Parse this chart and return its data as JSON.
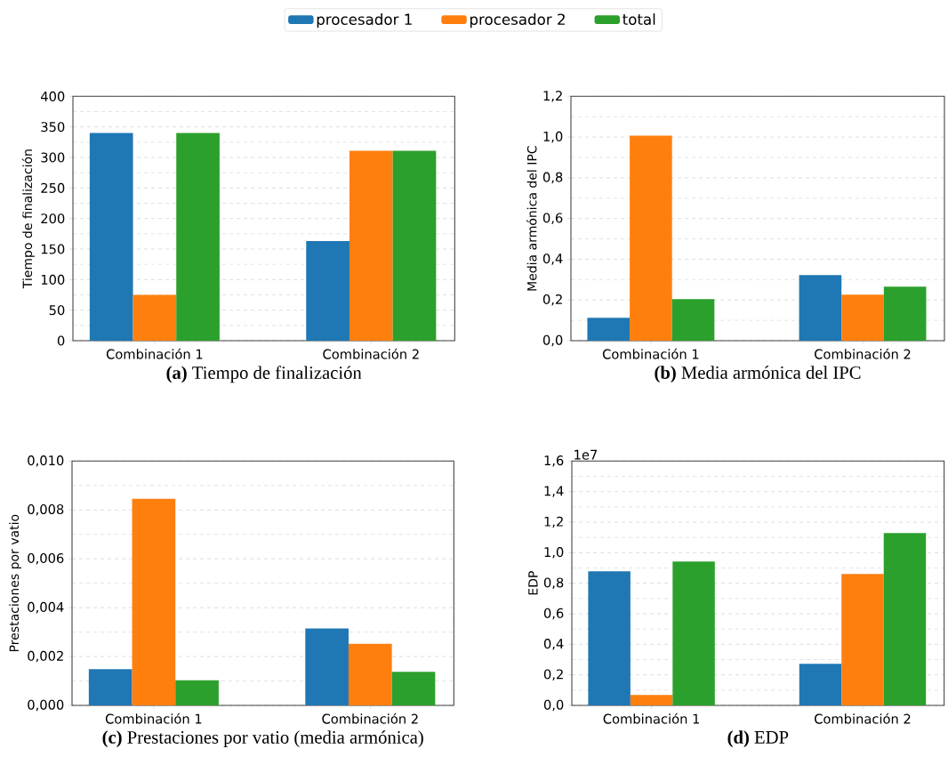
{
  "chart_data": [
    {
      "type": "bar",
      "title": "**(a)** Tiempo de finalización",
      "ylabel": "Tiempo de finalización",
      "categories": [
        "Combinación 1",
        "Combinación 2"
      ],
      "series": [
        {
          "name": "procesador 1",
          "color": "#1f77b4",
          "values": [
            340,
            163
          ]
        },
        {
          "name": "procesador 2",
          "color": "#ff7f0e",
          "values": [
            75,
            311
          ]
        },
        {
          "name": "total",
          "color": "#2ca02c",
          "values": [
            340,
            311
          ]
        }
      ],
      "ylim": [
        0,
        400
      ],
      "yticks": [
        0,
        50,
        100,
        150,
        200,
        250,
        300,
        350,
        400
      ],
      "grid": "y",
      "legend": "top"
    },
    {
      "type": "bar",
      "title": "**(b)** Media armónica del IPC",
      "ylabel": "Media armónica del IPC",
      "categories": [
        "Combinación 1",
        "Combinación 2"
      ],
      "series": [
        {
          "color": "#1f77b4",
          "values": [
            0.112,
            0.322
          ]
        },
        {
          "color": "#ff7f0e",
          "values": [
            1.007,
            0.226
          ]
        },
        {
          "color": "#2ca02c",
          "values": [
            0.204,
            0.265
          ]
        }
      ],
      "ylim": [
        0,
        1.2
      ],
      "yticks": [
        {
          "value": 0,
          "label": "0,0"
        },
        {
          "value": 0.2,
          "label": "0,2"
        },
        {
          "value": 0.4,
          "label": "0,4"
        },
        {
          "value": 0.6,
          "label": "0,6"
        },
        {
          "value": 0.8,
          "label": "0,8"
        },
        {
          "value": 1.0,
          "label": "1,0"
        },
        {
          "value": 1.2,
          "label": "1,2"
        }
      ],
      "grid": "y"
    },
    {
      "type": "bar",
      "title": "**(c)** Prestaciones por vatio (media armónica)",
      "ylabel": "Prestaciones por vatio",
      "categories": [
        "Combinación 1",
        "Combinación 2"
      ],
      "series": [
        {
          "color": "#1f77b4",
          "values": [
            0.00148,
            0.00315
          ]
        },
        {
          "color": "#ff7f0e",
          "values": [
            0.00846,
            0.00252
          ]
        },
        {
          "color": "#2ca02c",
          "values": [
            0.00103,
            0.00137
          ]
        }
      ],
      "ylim": [
        0,
        0.01
      ],
      "yticks": [
        {
          "value": 0,
          "label": "0,000"
        },
        {
          "value": 0.002,
          "label": "0,002"
        },
        {
          "value": 0.004,
          "label": "0,004"
        },
        {
          "value": 0.006,
          "label": "0,006"
        },
        {
          "value": 0.008,
          "label": "0,008"
        },
        {
          "value": 0.01,
          "label": "0,010"
        }
      ],
      "grid": "y"
    },
    {
      "type": "bar",
      "title": "**(d)** EDP",
      "ylabel": "EDP",
      "categories": [
        "Combinación 1",
        "Combinación 2"
      ],
      "series": [
        {
          "color": "#1f77b4",
          "values": [
            0.878,
            0.272
          ]
        },
        {
          "color": "#ff7f0e",
          "values": [
            0.068,
            0.86
          ]
        },
        {
          "color": "#2ca02c",
          "values": [
            0.942,
            1.128
          ]
        }
      ],
      "ylim": [
        0,
        1.6
      ],
      "yticks": [
        {
          "value": 0,
          "label": "0,0"
        },
        {
          "value": 0.2,
          "label": "0,2"
        },
        {
          "value": 0.4,
          "label": "0,4"
        },
        {
          "value": 0.6,
          "label": "0,6"
        },
        {
          "value": 0.8,
          "label": "0,8"
        },
        {
          "value": 1.0,
          "label": "1,0"
        },
        {
          "value": 1.2,
          "label": "1,2"
        },
        {
          "value": 1.4,
          "label": "1,4"
        },
        {
          "value": 1.6,
          "label": "1,6"
        }
      ],
      "annotations": [
        "1e7"
      ],
      "grid": "y"
    }
  ]
}
